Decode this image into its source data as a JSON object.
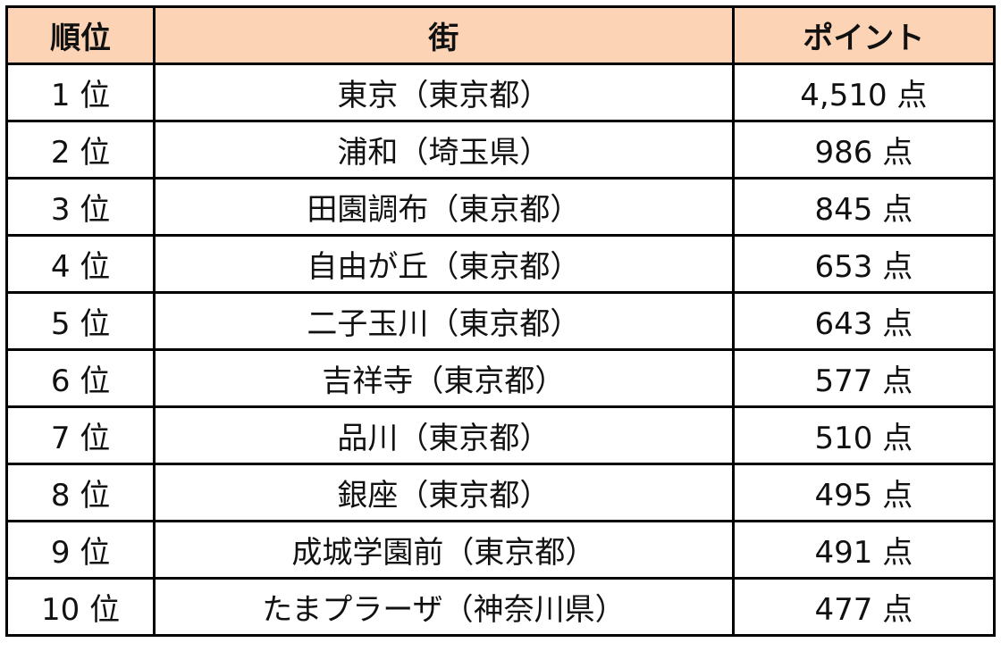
{
  "header_color": "#FCD3B4",
  "headers": [
    "順位",
    "街",
    "ポイント"
  ],
  "rows": [
    {
      "rank": "1 位",
      "town": "東京（東京都）",
      "points": "4,510 点"
    },
    {
      "rank": "2 位",
      "town": "浦和（埼玉県）",
      "points": "986 点"
    },
    {
      "rank": "3 位",
      "town": "田園調布（東京都）",
      "points": "845 点"
    },
    {
      "rank": "4 位",
      "town": "自由が丘（東京都）",
      "points": "653 点"
    },
    {
      "rank": "5 位",
      "town": "二子玉川（東京都）",
      "points": "643 点"
    },
    {
      "rank": "6 位",
      "town": "吉祥寺（東京都）",
      "points": "577 点"
    },
    {
      "rank": "7 位",
      "town": "品川（東京都）",
      "points": "510 点"
    },
    {
      "rank": "8 位",
      "town": "銀座（東京都）",
      "points": "495 点"
    },
    {
      "rank": "9 位",
      "town": "成城学園前（東京都）",
      "points": "491 点"
    },
    {
      "rank": "10 位",
      "town": "たまプラーザ（神奈川県）",
      "points": "477 点"
    }
  ]
}
